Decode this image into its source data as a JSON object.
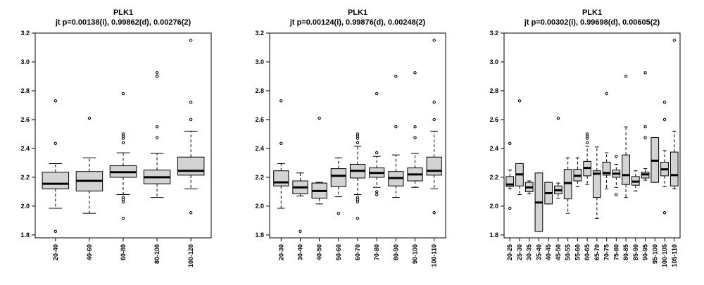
{
  "chart_data": [
    {
      "type": "boxplot",
      "title": "PLK1",
      "subtitle": "jt p=0.00138(i), 0.99862(d), 0.00276(2)",
      "ylim": [
        1.78,
        3.2
      ],
      "yticks": [
        "1.8",
        "2.0",
        "2.2",
        "2.4",
        "2.6",
        "2.8",
        "3.0",
        "3.2"
      ],
      "categories": [
        "20-40",
        "40-60",
        "60-80",
        "80-100",
        "100-120"
      ],
      "boxes": [
        {
          "q1": 2.12,
          "median": 2.155,
          "q3": 2.235,
          "whisker_low": 1.985,
          "whisker_high": 2.295,
          "outliers": [
            2.73,
            2.435,
            1.825
          ]
        },
        {
          "q1": 2.105,
          "median": 2.175,
          "q3": 2.24,
          "whisker_low": 1.95,
          "whisker_high": 2.335,
          "outliers": [
            2.61
          ]
        },
        {
          "q1": 2.2,
          "median": 2.235,
          "q3": 2.28,
          "whisker_low": 2.08,
          "whisker_high": 2.37,
          "outliers": [
            2.78,
            2.5,
            2.485,
            2.47,
            2.44,
            2.06,
            2.045,
            2.03,
            1.915
          ]
        },
        {
          "q1": 2.155,
          "median": 2.2,
          "q3": 2.25,
          "whisker_low": 2.06,
          "whisker_high": 2.365,
          "outliers": [
            2.925,
            2.9,
            2.55,
            2.475
          ]
        },
        {
          "q1": 2.215,
          "median": 2.245,
          "q3": 2.34,
          "whisker_low": 2.12,
          "whisker_high": 2.52,
          "outliers": [
            3.15,
            2.72,
            2.6,
            1.955
          ]
        }
      ]
    },
    {
      "type": "boxplot",
      "title": "PLK1",
      "subtitle": "jt p=0.00124(i), 0.99876(d), 0.00248(2)",
      "ylim": [
        1.78,
        3.2
      ],
      "yticks": [
        "1.8",
        "2.0",
        "2.2",
        "2.4",
        "2.6",
        "2.8",
        "3.0",
        "3.2"
      ],
      "categories": [
        "20-30",
        "30-40",
        "40-50",
        "50-60",
        "60-70",
        "70-80",
        "80-90",
        "90-100",
        "100-110"
      ],
      "boxes": [
        {
          "q1": 2.14,
          "median": 2.165,
          "q3": 2.245,
          "whisker_low": 1.985,
          "whisker_high": 2.295,
          "outliers": [
            2.73,
            2.435
          ]
        },
        {
          "q1": 2.085,
          "median": 2.13,
          "q3": 2.175,
          "whisker_low": 2.07,
          "whisker_high": 2.23,
          "outliers": [
            1.825
          ]
        },
        {
          "q1": 2.055,
          "median": 2.105,
          "q3": 2.16,
          "whisker_low": 2.015,
          "whisker_high": 2.165,
          "outliers": [
            2.61
          ]
        },
        {
          "q1": 2.135,
          "median": 2.21,
          "q3": 2.26,
          "whisker_low": 2.065,
          "whisker_high": 2.335,
          "outliers": [
            1.95
          ]
        },
        {
          "q1": 2.195,
          "median": 2.245,
          "q3": 2.29,
          "whisker_low": 2.08,
          "whisker_high": 2.415,
          "outliers": [
            2.5,
            2.485,
            2.47,
            2.44,
            2.06,
            2.045,
            2.03,
            1.915
          ]
        },
        {
          "q1": 2.2,
          "median": 2.23,
          "q3": 2.265,
          "whisker_low": 2.13,
          "whisker_high": 2.345,
          "outliers": [
            2.78,
            2.37,
            2.1,
            2.08
          ]
        },
        {
          "q1": 2.14,
          "median": 2.195,
          "q3": 2.24,
          "whisker_low": 2.06,
          "whisker_high": 2.355,
          "outliers": [
            2.9,
            2.55
          ]
        },
        {
          "q1": 2.175,
          "median": 2.22,
          "q3": 2.265,
          "whisker_low": 2.13,
          "whisker_high": 2.365,
          "outliers": [
            2.925,
            2.55,
            2.475
          ]
        },
        {
          "q1": 2.215,
          "median": 2.245,
          "q3": 2.34,
          "whisker_low": 2.12,
          "whisker_high": 2.52,
          "outliers": [
            3.15,
            2.72,
            2.6,
            1.955
          ]
        }
      ]
    },
    {
      "type": "boxplot",
      "title": "PLK1",
      "subtitle": "jt p=0.00302(i), 0.99698(d), 0.00605(2)",
      "ylim": [
        1.78,
        3.2
      ],
      "yticks": [
        "1.8",
        "2.0",
        "2.2",
        "2.4",
        "2.6",
        "2.8",
        "3.0",
        "3.2"
      ],
      "categories": [
        "20-25",
        "25-30",
        "30-35",
        "35-40",
        "40-45",
        "45-50",
        "50-55",
        "55-60",
        "60-65",
        "65-70",
        "70-75",
        "75-80",
        "80-85",
        "85-90",
        "90-95",
        "95-100",
        "100-105",
        "105-110"
      ],
      "boxes": [
        {
          "q1": 2.135,
          "median": 2.15,
          "q3": 2.205,
          "whisker_low": 2.12,
          "whisker_high": 2.25,
          "outliers": [
            2.435,
            1.985
          ]
        },
        {
          "q1": 2.14,
          "median": 2.22,
          "q3": 2.295,
          "whisker_low": 2.08,
          "whisker_high": 2.295,
          "outliers": [
            2.73
          ]
        },
        {
          "q1": 2.1,
          "median": 2.13,
          "q3": 2.165,
          "whisker_low": 2.085,
          "whisker_high": 2.175,
          "outliers": []
        },
        {
          "q1": 1.825,
          "median": 2.025,
          "q3": 2.23,
          "whisker_low": 1.825,
          "whisker_high": 2.23,
          "outliers": []
        },
        {
          "q1": 2.015,
          "median": 2.09,
          "q3": 2.165,
          "whisker_low": 2.015,
          "whisker_high": 2.165,
          "outliers": []
        },
        {
          "q1": 2.085,
          "median": 2.11,
          "q3": 2.14,
          "whisker_low": 2.055,
          "whisker_high": 2.16,
          "outliers": [
            2.61
          ]
        },
        {
          "q1": 2.05,
          "median": 2.16,
          "q3": 2.255,
          "whisker_low": 1.95,
          "whisker_high": 2.335,
          "outliers": []
        },
        {
          "q1": 2.175,
          "median": 2.21,
          "q3": 2.255,
          "whisker_low": 2.135,
          "whisker_high": 2.335,
          "outliers": []
        },
        {
          "q1": 2.21,
          "median": 2.265,
          "q3": 2.31,
          "whisker_low": 2.15,
          "whisker_high": 2.415,
          "outliers": [
            2.5,
            2.485,
            2.47,
            2.44
          ]
        },
        {
          "q1": 2.06,
          "median": 2.225,
          "q3": 2.245,
          "whisker_low": 1.915,
          "whisker_high": 2.41,
          "outliers": []
        },
        {
          "q1": 2.215,
          "median": 2.23,
          "q3": 2.305,
          "whisker_low": 2.12,
          "whisker_high": 2.37,
          "outliers": [
            2.78
          ]
        },
        {
          "q1": 2.2,
          "median": 2.225,
          "q3": 2.25,
          "whisker_low": 2.13,
          "whisker_high": 2.29,
          "outliers": [
            2.345,
            2.08
          ]
        },
        {
          "q1": 2.15,
          "median": 2.215,
          "q3": 2.355,
          "whisker_low": 2.06,
          "whisker_high": 2.55,
          "outliers": [
            2.9
          ]
        },
        {
          "q1": 2.145,
          "median": 2.17,
          "q3": 2.205,
          "whisker_low": 2.105,
          "whisker_high": 2.245,
          "outliers": []
        },
        {
          "q1": 2.195,
          "median": 2.22,
          "q3": 2.235,
          "whisker_low": 2.18,
          "whisker_high": 2.26,
          "outliers": [
            2.925,
            2.55,
            2.475
          ]
        },
        {
          "q1": 2.165,
          "median": 2.315,
          "q3": 2.475,
          "whisker_low": 2.165,
          "whisker_high": 2.475,
          "outliers": []
        },
        {
          "q1": 2.21,
          "median": 2.255,
          "q3": 2.305,
          "whisker_low": 2.135,
          "whisker_high": 2.385,
          "outliers": [
            2.72,
            2.6,
            1.955
          ]
        },
        {
          "q1": 2.14,
          "median": 2.215,
          "q3": 2.375,
          "whisker_low": 2.12,
          "whisker_high": 2.52,
          "outliers": [
            3.15
          ]
        }
      ]
    }
  ]
}
